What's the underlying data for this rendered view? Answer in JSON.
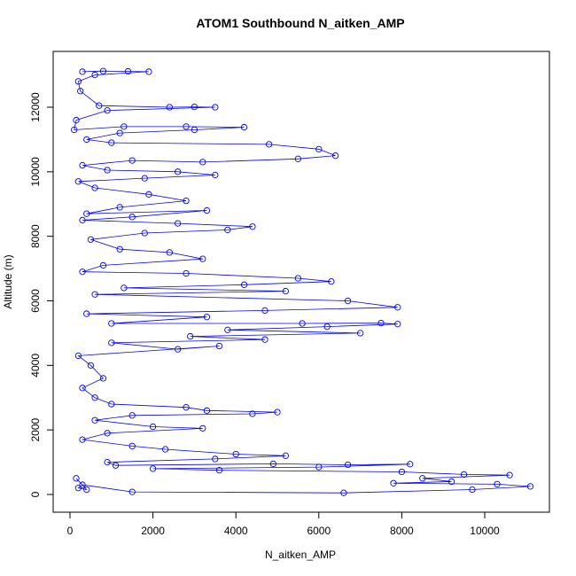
{
  "chart_data": {
    "type": "line",
    "title": "ATOM1 Southbound N_aitken_AMP",
    "x_label": "N_aitken_AMP",
    "y_label": "Altitude (m)",
    "color": "#0000ff",
    "markers": true,
    "xlim": [
      -406,
      11560
    ],
    "ylim": [
      -549,
      13730
    ],
    "xticks": [
      0,
      2000,
      4000,
      6000,
      8000,
      10000
    ],
    "yticks": [
      0,
      2000,
      4000,
      6000,
      8000,
      10000,
      12000
    ],
    "x": [
      300,
      800,
      1400,
      1900,
      600,
      200,
      250,
      700,
      2400,
      3000,
      3500,
      900,
      150,
      100,
      1300,
      2800,
      4200,
      3000,
      1200,
      400,
      1000,
      4800,
      6000,
      6400,
      5500,
      3200,
      1500,
      300,
      900,
      2600,
      3500,
      1800,
      200,
      600,
      1900,
      2800,
      1200,
      400,
      3300,
      1500,
      300,
      2600,
      4400,
      3800,
      1800,
      500,
      1200,
      2400,
      3200,
      800,
      300,
      2800,
      5500,
      6300,
      4200,
      1300,
      5200,
      600,
      6700,
      7900,
      4700,
      400,
      3300,
      1000,
      5600,
      7500,
      7900,
      6200,
      3800,
      7000,
      2900,
      4700,
      1000,
      2600,
      3600,
      200,
      500,
      800,
      300,
      600,
      1000,
      2800,
      3300,
      5000,
      4400,
      1500,
      600,
      2000,
      3200,
      900,
      300,
      1500,
      2300,
      4000,
      5200,
      3500,
      900,
      1100,
      4900,
      6700,
      8200,
      6000,
      2000,
      3600,
      8000,
      9500,
      10600,
      8500,
      9200,
      7800,
      10300,
      11100,
      9700,
      6600,
      1500,
      300,
      200,
      400,
      150
    ],
    "values": [
      13100,
      13120,
      13110,
      13100,
      13000,
      12800,
      12500,
      12050,
      12000,
      12010,
      12000,
      11900,
      11600,
      11300,
      11400,
      11400,
      11380,
      11300,
      11200,
      11000,
      10900,
      10850,
      10700,
      10500,
      10400,
      10300,
      10350,
      10200,
      10050,
      10000,
      9900,
      9800,
      9700,
      9500,
      9300,
      9100,
      8900,
      8700,
      8800,
      8600,
      8500,
      8400,
      8300,
      8200,
      8100,
      7900,
      7600,
      7500,
      7300,
      7100,
      6900,
      6850,
      6700,
      6600,
      6500,
      6400,
      6300,
      6200,
      6000,
      5800,
      5700,
      5600,
      5500,
      5300,
      5300,
      5310,
      5280,
      5200,
      5100,
      5000,
      4900,
      4800,
      4700,
      4500,
      4600,
      4300,
      4000,
      3600,
      3300,
      3000,
      2800,
      2700,
      2600,
      2550,
      2500,
      2450,
      2300,
      2100,
      2050,
      1900,
      1700,
      1500,
      1400,
      1250,
      1200,
      1100,
      1000,
      900,
      950,
      920,
      940,
      850,
      800,
      750,
      700,
      620,
      600,
      500,
      400,
      350,
      320,
      250,
      150,
      50,
      80,
      300,
      200,
      150,
      500
    ]
  }
}
